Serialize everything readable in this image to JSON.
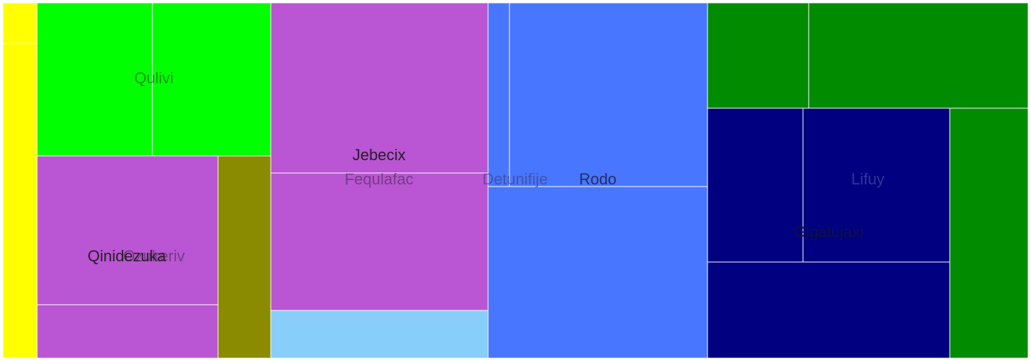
{
  "chart_data": {
    "type": "treemap",
    "title": "",
    "labels": {
      "qulivi": "Qulivi",
      "qinidezuka": "Qinidezuka",
      "ozukeriv": "Ozukeriv",
      "jebecix": "Jebecix",
      "fequlafac": "Fequlafac",
      "detunifije": "Detunifije",
      "rodo": "Rodo",
      "lifuy": "Lifuy",
      "gigatujaxi": "Gigatujaxi"
    },
    "nodes": [
      {
        "name": "",
        "color": "#ffff00",
        "value": 0.3
      },
      {
        "name": "",
        "color": "#ffff00",
        "value": 2.7
      },
      {
        "name": "Qulivi",
        "color": "#00ff00",
        "value": 4.2
      },
      {
        "name": "Qulivi",
        "color": "#00ff00",
        "value": 4.3
      },
      {
        "name": "Qinidezuka",
        "color": "#ba55d3",
        "value": 6.5
      },
      {
        "name": "Qinidezuka",
        "color": "#ba55d3",
        "value": 2.3
      },
      {
        "name": "Ozukeriv",
        "color": "#8b8b00",
        "value": 2.3
      },
      {
        "name": "Jebecix",
        "color": "#ba55d3",
        "value": 8.7
      },
      {
        "name": "Fequlafac",
        "color": "#ba55d3",
        "value": 7.1
      },
      {
        "name": "Fequlafac",
        "color": "#87cefa",
        "value": 2.4
      },
      {
        "name": "Detunifije",
        "color": "#4876ff",
        "value": 1.0
      },
      {
        "name": "Rodo",
        "color": "#4876ff",
        "value": 8.6
      },
      {
        "name": "Rodo",
        "color": "#4876ff",
        "value": 9.0
      },
      {
        "name": "",
        "color": "#008b00",
        "value": 2.5
      },
      {
        "name": "",
        "color": "#008b00",
        "value": 5.6
      },
      {
        "name": "",
        "color": "#008b00",
        "value": 5.6
      },
      {
        "name": "Gigatujaxi",
        "color": "#000080",
        "value": 3.4
      },
      {
        "name": "Lifuy",
        "color": "#000080",
        "value": 3.4
      },
      {
        "name": "Gigatujaxi",
        "color": "#000080",
        "value": 4.4
      }
    ]
  }
}
